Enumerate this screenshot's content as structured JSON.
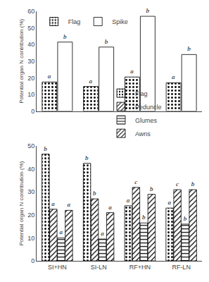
{
  "chart_data": [
    {
      "type": "bar",
      "categories": [
        "SI+HN",
        "SI-LN",
        "RF+HN",
        "RF-LN"
      ],
      "series": [
        {
          "name": "Flag",
          "color": "#b5c95a",
          "values": [
            17.5,
            14.8,
            20.5,
            17.0
          ],
          "annotations": [
            "a",
            "a",
            "a",
            "a"
          ]
        },
        {
          "name": "Spike",
          "color": "#ffffff",
          "values": [
            41.5,
            38.5,
            57.0,
            34.0
          ],
          "annotations": [
            "b",
            "b",
            "b",
            "b"
          ]
        }
      ],
      "ylabel": "Potential organ N contribution (%)",
      "ylim": [
        0,
        60
      ],
      "yticks": [
        0,
        10,
        20,
        30,
        40,
        50,
        60
      ],
      "grid": false,
      "legend": "upper left",
      "tick_labels": "y"
    },
    {
      "type": "bar",
      "categories": [
        "SI+HN",
        "SI-LN",
        "RF+HN",
        "RF-LN"
      ],
      "series": [
        {
          "name": "Flag",
          "color": "#b5c95a",
          "values": [
            46.5,
            42.5,
            24.0,
            23.0
          ],
          "annotations": [
            "b",
            "b",
            "a",
            "a"
          ]
        },
        {
          "name": "Peduncle",
          "color": "#e8a020",
          "values": [
            22.5,
            27.0,
            32.0,
            31.0
          ],
          "annotations": [
            "a",
            "b",
            "c",
            "c"
          ]
        },
        {
          "name": "Glumes",
          "color": "#922b21",
          "values": [
            10.0,
            9.5,
            16.5,
            16.0
          ],
          "annotations": [
            "a",
            "a",
            "b",
            "b"
          ]
        },
        {
          "name": "Awns",
          "color": "#d0d0d0",
          "values": [
            22.0,
            21.0,
            29.0,
            31.0
          ],
          "annotations": [
            "a",
            "a",
            "b",
            "b"
          ]
        }
      ],
      "ylabel": "Potential organ N contribution (%)",
      "ylim": [
        0,
        50
      ],
      "yticks": [
        0,
        10,
        20,
        30,
        40,
        50
      ],
      "grid": false,
      "legend": "top"
    }
  ]
}
